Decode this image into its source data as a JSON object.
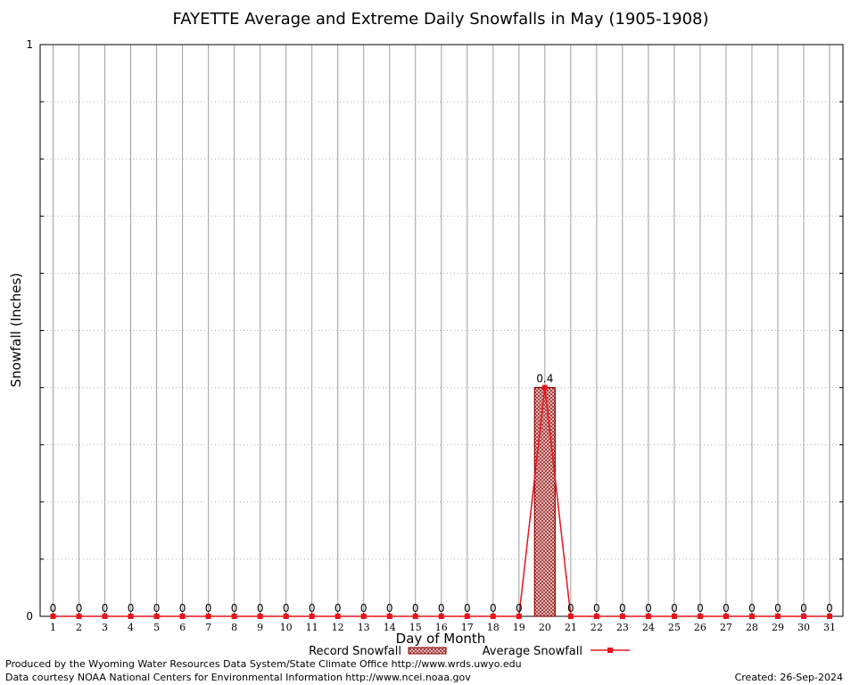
{
  "chart_data": {
    "type": "bar",
    "title": "FAYETTE Average and Extreme Daily Snowfalls in May (1905-1908)",
    "xlabel": "Day of Month",
    "ylabel": "Snowfall (Inches)",
    "ylim": [
      0,
      1
    ],
    "y_ticks": [
      "0",
      "1"
    ],
    "categories": [
      "1",
      "2",
      "3",
      "4",
      "5",
      "6",
      "7",
      "8",
      "9",
      "10",
      "11",
      "12",
      "13",
      "14",
      "15",
      "16",
      "17",
      "18",
      "19",
      "20",
      "21",
      "22",
      "23",
      "24",
      "25",
      "26",
      "27",
      "28",
      "29",
      "30",
      "31"
    ],
    "series": [
      {
        "name": "Record Snowfall",
        "kind": "bar",
        "values": [
          0,
          0,
          0,
          0,
          0,
          0,
          0,
          0,
          0,
          0,
          0,
          0,
          0,
          0,
          0,
          0,
          0,
          0,
          0,
          0.4,
          0,
          0,
          0,
          0,
          0,
          0,
          0,
          0,
          0,
          0,
          0
        ]
      },
      {
        "name": "Average Snowfall",
        "kind": "line",
        "values": [
          0,
          0,
          0,
          0,
          0,
          0,
          0,
          0,
          0,
          0,
          0,
          0,
          0,
          0,
          0,
          0,
          0,
          0,
          0,
          0.4,
          0,
          0,
          0,
          0,
          0,
          0,
          0,
          0,
          0,
          0,
          0
        ]
      }
    ],
    "data_labels": [
      "0",
      "0",
      "0",
      "0",
      "0",
      "0",
      "0",
      "0",
      "0",
      "0",
      "0",
      "0",
      "0",
      "0",
      "0",
      "0",
      "0",
      "0",
      "0",
      "0.4",
      "0",
      "0",
      "0",
      "0",
      "0",
      "0",
      "0",
      "0",
      "0",
      "0",
      "0"
    ],
    "grid": true,
    "legend_position": "bottom",
    "colors": {
      "line": "#e8141b",
      "bar_fill": "#c8a0a0",
      "bar_stroke": "#8b0000",
      "grid_vertical": "#a0a0a0",
      "grid_horizontal": "#b0b0b0"
    }
  },
  "footer": {
    "line1": "Produced by the Wyoming Water Resources Data System/State Climate Office http://www.wrds.uwyo.edu",
    "line2": "Data courtesy NOAA National Centers for Environmental Information http://www.ncei.noaa.gov",
    "created": "Created:  26-Sep-2024"
  }
}
